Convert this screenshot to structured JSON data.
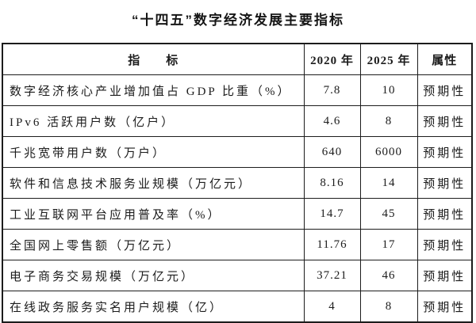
{
  "title": "“十四五”数字经济发展主要指标",
  "table": {
    "headers": [
      "指　　标",
      "2020 年",
      "2025 年",
      "属性"
    ],
    "rows": [
      {
        "indicator": "数字经济核心产业增加值占 GDP 比重（%）",
        "y2020": "7.8",
        "y2025": "10",
        "attribute": "预期性"
      },
      {
        "indicator": "IPv6 活跃用户数（亿户）",
        "y2020": "4.6",
        "y2025": "8",
        "attribute": "预期性"
      },
      {
        "indicator": "千兆宽带用户数（万户）",
        "y2020": "640",
        "y2025": "6000",
        "attribute": "预期性"
      },
      {
        "indicator": "软件和信息技术服务业规模（万亿元）",
        "y2020": "8.16",
        "y2025": "14",
        "attribute": "预期性"
      },
      {
        "indicator": "工业互联网平台应用普及率（%）",
        "y2020": "14.7",
        "y2025": "45",
        "attribute": "预期性"
      },
      {
        "indicator": "全国网上零售额（万亿元）",
        "y2020": "11.76",
        "y2025": "17",
        "attribute": "预期性"
      },
      {
        "indicator": "电子商务交易规模（万亿元）",
        "y2020": "37.21",
        "y2025": "46",
        "attribute": "预期性"
      },
      {
        "indicator": "在线政务服务实名用户规模（亿）",
        "y2020": "4",
        "y2025": "8",
        "attribute": "预期性"
      }
    ]
  },
  "colors": {
    "text": "#1c1c1c",
    "border": "#1c1c1c",
    "background": "#ffffff"
  }
}
